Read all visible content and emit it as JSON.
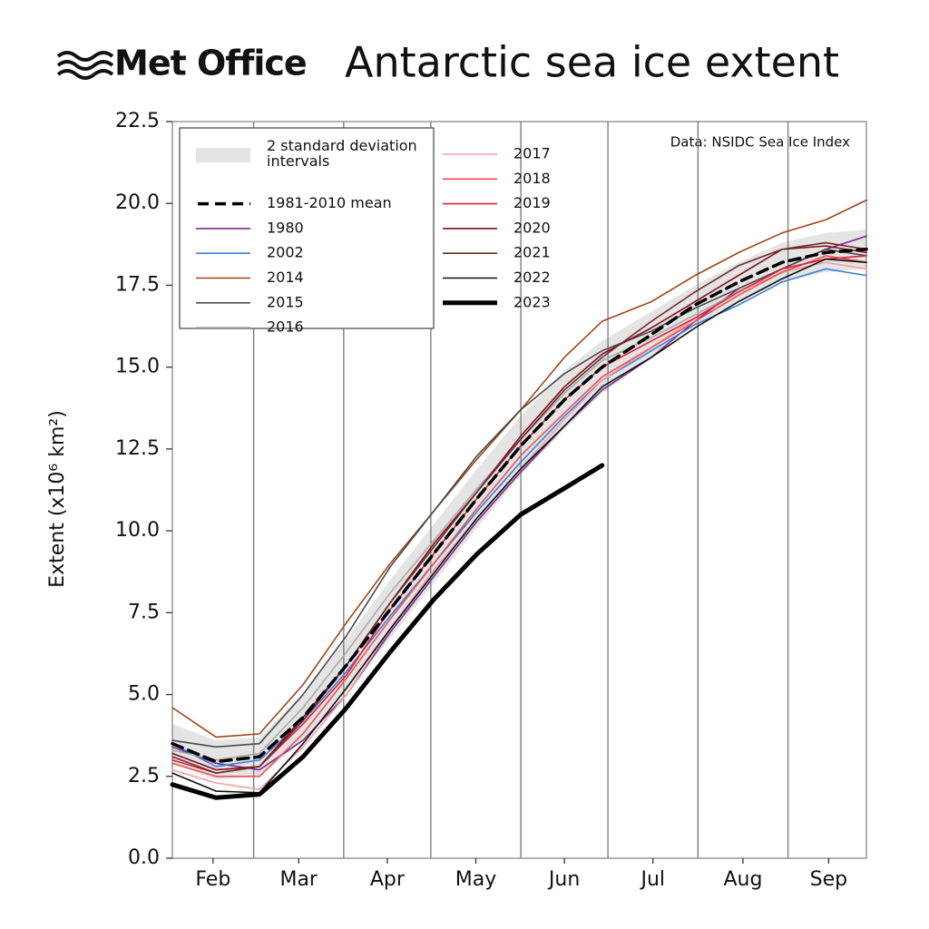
{
  "header": {
    "logo": "Met Office"
  },
  "chart_data": {
    "type": "line",
    "title": "Antarctic sea ice extent",
    "ylabel": "Extent (x10⁶ km²)",
    "annotation": "Data: NSIDC Sea Ice Index",
    "legend": "upper left",
    "x": [
      0,
      15,
      30,
      45,
      60,
      75,
      90,
      105,
      120,
      135,
      148,
      165,
      180,
      195,
      210,
      225,
      239
    ],
    "xlim": [
      0,
      239
    ],
    "xticks": [
      {
        "value": 14,
        "label": "Feb"
      },
      {
        "value": 43.5,
        "label": "Mar"
      },
      {
        "value": 74,
        "label": "Apr"
      },
      {
        "value": 104.5,
        "label": "May"
      },
      {
        "value": 135,
        "label": "Jun"
      },
      {
        "value": 165.5,
        "label": "Jul"
      },
      {
        "value": 196.5,
        "label": "Aug"
      },
      {
        "value": 226,
        "label": "Sep"
      }
    ],
    "xgrid": [
      28,
      59,
      89,
      120,
      150,
      181,
      212
    ],
    "ylim": [
      0,
      22.5
    ],
    "yticks": [
      {
        "value": 0,
        "label": "0.0"
      },
      2.5,
      {
        "value": 5,
        "label": "5.0"
      },
      7.5,
      {
        "value": 10,
        "label": "10.0"
      },
      12.5,
      {
        "value": 15,
        "label": "15.0"
      },
      17.5,
      {
        "value": 20,
        "label": "20.0"
      },
      22.5
    ],
    "band": {
      "name": "2 standard deviation intervals",
      "color": "#e4e4e4",
      "upper": [
        4.1,
        3.6,
        3.7,
        5.0,
        6.7,
        8.5,
        10.2,
        11.9,
        13.5,
        14.9,
        15.8,
        16.7,
        17.5,
        18.2,
        18.8,
        19.1,
        19.2
      ],
      "lower": [
        2.9,
        2.4,
        2.5,
        3.6,
        5.1,
        6.7,
        8.4,
        10.1,
        11.7,
        13.1,
        14.2,
        15.3,
        16.3,
        17.0,
        17.6,
        17.9,
        18.0
      ]
    },
    "series": [
      {
        "name": "1981-2010 mean",
        "color": "#000000",
        "dash": true,
        "width": 3.5,
        "values": [
          3.5,
          2.95,
          3.1,
          4.3,
          5.9,
          7.6,
          9.3,
          11.0,
          12.6,
          14.0,
          15.0,
          16.0,
          16.9,
          17.6,
          18.2,
          18.5,
          18.6
        ]
      },
      {
        "name": "1980",
        "color": "#7b2d8e",
        "values": [
          3.4,
          2.9,
          2.7,
          3.6,
          5.0,
          6.9,
          8.6,
          10.3,
          11.8,
          13.2,
          14.3,
          15.3,
          16.4,
          17.4,
          18.0,
          18.6,
          19.0
        ]
      },
      {
        "name": "2002",
        "color": "#3a7fdc",
        "values": [
          3.5,
          2.8,
          3.0,
          4.2,
          5.7,
          7.4,
          9.0,
          10.6,
          12.1,
          13.5,
          14.6,
          15.5,
          16.3,
          16.9,
          17.6,
          18.0,
          17.8
        ]
      },
      {
        "name": "2014",
        "color": "#a0461a",
        "values": [
          4.6,
          3.7,
          3.8,
          5.3,
          7.2,
          9.0,
          10.6,
          12.2,
          13.7,
          15.3,
          16.4,
          17.0,
          17.8,
          18.5,
          19.1,
          19.5,
          20.1
        ]
      },
      {
        "name": "2015",
        "color": "#4a4a4a",
        "values": [
          3.6,
          3.4,
          3.5,
          5.0,
          6.8,
          8.9,
          10.6,
          12.3,
          13.7,
          14.8,
          15.5,
          16.1,
          16.8,
          17.4,
          18.0,
          18.6,
          18.4
        ]
      },
      {
        "name": "2016",
        "color": "#a9a9a9",
        "values": [
          3.3,
          3.0,
          3.2,
          4.6,
          6.3,
          8.1,
          9.7,
          11.3,
          12.8,
          14.2,
          15.2,
          15.9,
          16.6,
          17.3,
          17.9,
          18.4,
          18.2
        ]
      },
      {
        "name": "2017",
        "color": "#f4a0a0",
        "values": [
          2.7,
          2.3,
          2.1,
          3.4,
          5.0,
          7.0,
          8.8,
          10.4,
          11.9,
          13.4,
          14.6,
          15.6,
          16.5,
          17.3,
          17.9,
          18.2,
          18.0
        ]
      },
      {
        "name": "2018",
        "color": "#f05050",
        "values": [
          2.9,
          2.5,
          2.5,
          3.8,
          5.5,
          7.3,
          9.0,
          10.7,
          12.3,
          13.6,
          14.7,
          15.6,
          16.4,
          17.2,
          17.9,
          18.4,
          18.2
        ]
      },
      {
        "name": "2019",
        "color": "#e0203a",
        "values": [
          3.0,
          2.6,
          2.8,
          4.1,
          5.6,
          7.6,
          9.3,
          11.0,
          12.6,
          14.0,
          15.0,
          15.8,
          16.5,
          17.3,
          18.0,
          18.3,
          18.4
        ]
      },
      {
        "name": "2020",
        "color": "#8b0a1e",
        "values": [
          3.2,
          2.7,
          2.8,
          4.3,
          5.9,
          7.8,
          9.6,
          11.2,
          12.9,
          14.4,
          15.4,
          16.2,
          17.0,
          17.8,
          18.6,
          18.7,
          18.5
        ]
      },
      {
        "name": "2021",
        "color": "#6b2a2a",
        "values": [
          3.1,
          2.6,
          2.8,
          4.2,
          5.9,
          7.8,
          9.5,
          11.2,
          12.8,
          14.3,
          15.3,
          16.4,
          17.3,
          18.1,
          18.6,
          18.8,
          18.6
        ]
      },
      {
        "name": "2022",
        "color": "#111111",
        "values": [
          2.6,
          2.05,
          2.0,
          3.5,
          5.2,
          7.0,
          8.7,
          10.4,
          11.9,
          13.2,
          14.4,
          15.3,
          16.2,
          17.0,
          17.7,
          18.3,
          18.2
        ]
      },
      {
        "name": "2023",
        "color": "#000000",
        "width": 5,
        "values": [
          2.25,
          1.85,
          1.95,
          3.1,
          4.6,
          6.3,
          7.9,
          9.3,
          10.5,
          11.3,
          12.0,
          null,
          null,
          null,
          null,
          null,
          null
        ]
      }
    ]
  }
}
